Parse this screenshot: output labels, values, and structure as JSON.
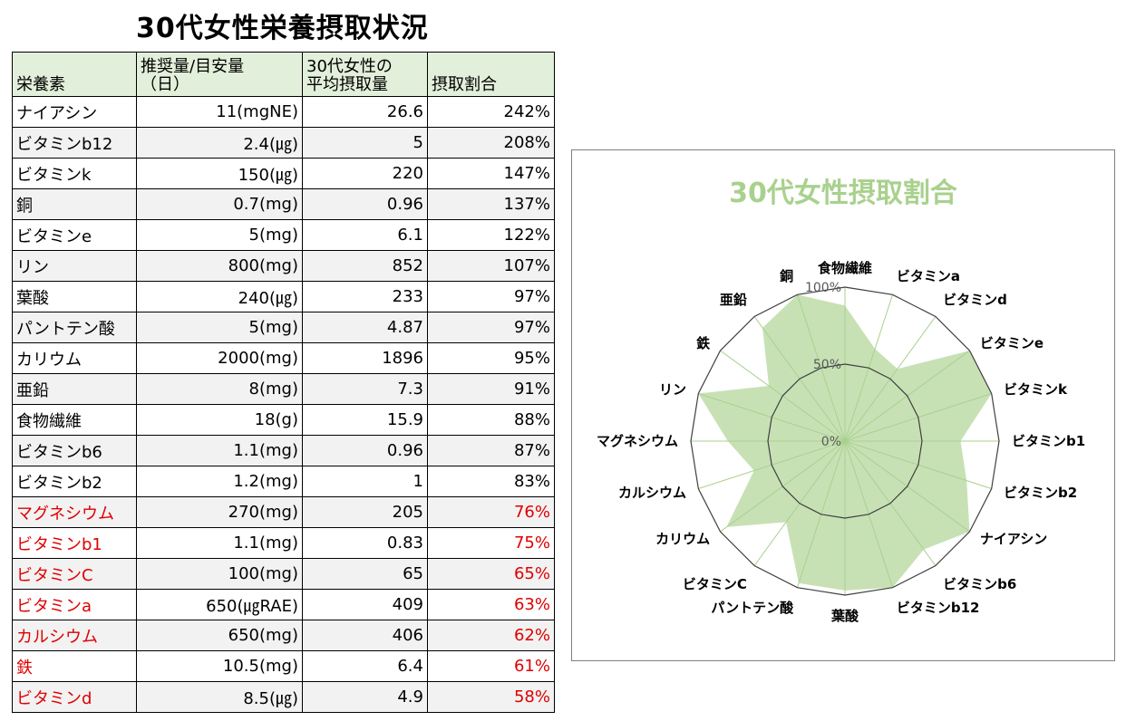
{
  "page_title": "30代女性栄養摂取状況",
  "table": {
    "headers": [
      "栄養素",
      "推奨量/目安量\n（日）",
      "30代女性の\n平均摂取量",
      "摂取割合"
    ],
    "rows": [
      {
        "name": "ナイアシン",
        "rec": "11(mgNE)",
        "avg": "26.6",
        "pct": "242%",
        "low": false
      },
      {
        "name": "ビタミンb12",
        "rec": "2.4(㎍)",
        "avg": "5",
        "pct": "208%",
        "low": false
      },
      {
        "name": "ビタミンk",
        "rec": "150(㎍)",
        "avg": "220",
        "pct": "147%",
        "low": false
      },
      {
        "name": "銅",
        "rec": "0.7(mg)",
        "avg": "0.96",
        "pct": "137%",
        "low": false
      },
      {
        "name": "ビタミンe",
        "rec": "5(mg)",
        "avg": "6.1",
        "pct": "122%",
        "low": false
      },
      {
        "name": "リン",
        "rec": "800(mg)",
        "avg": "852",
        "pct": "107%",
        "low": false
      },
      {
        "name": "葉酸",
        "rec": "240(㎍)",
        "avg": "233",
        "pct": "97%",
        "low": false
      },
      {
        "name": "パントテン酸",
        "rec": "5(mg)",
        "avg": "4.87",
        "pct": "97%",
        "low": false
      },
      {
        "name": "カリウム",
        "rec": "2000(mg)",
        "avg": "1896",
        "pct": "95%",
        "low": false
      },
      {
        "name": "亜鉛",
        "rec": "8(mg)",
        "avg": "7.3",
        "pct": "91%",
        "low": false
      },
      {
        "name": "食物繊維",
        "rec": "18(g)",
        "avg": "15.9",
        "pct": "88%",
        "low": false
      },
      {
        "name": "ビタミンb6",
        "rec": "1.1(mg)",
        "avg": "0.96",
        "pct": "87%",
        "low": false
      },
      {
        "name": "ビタミンb2",
        "rec": "1.2(mg)",
        "avg": "1",
        "pct": "83%",
        "low": false
      },
      {
        "name": "マグネシウム",
        "rec": "270(mg)",
        "avg": "205",
        "pct": "76%",
        "low": true
      },
      {
        "name": "ビタミンb1",
        "rec": "1.1(mg)",
        "avg": "0.83",
        "pct": "75%",
        "low": true
      },
      {
        "name": "ビタミンC",
        "rec": "100(mg)",
        "avg": "65",
        "pct": "65%",
        "low": true
      },
      {
        "name": "ビタミンa",
        "rec": "650(㎍RAE)",
        "avg": "409",
        "pct": "63%",
        "low": true
      },
      {
        "name": "カルシウム",
        "rec": "650(mg)",
        "avg": "406",
        "pct": "62%",
        "low": true
      },
      {
        "name": "鉄",
        "rec": "10.5(mg)",
        "avg": "6.4",
        "pct": "61%",
        "low": true
      },
      {
        "name": "ビタミンd",
        "rec": "8.5(㎍)",
        "avg": "4.9",
        "pct": "58%",
        "low": true
      }
    ]
  },
  "colors": {
    "header_bg": "#e2efda",
    "alt_row_bg": "#f2f2f2",
    "low_text": "#e00000",
    "radar_fill": "#a9d18e",
    "chart_title": "#a9d18e"
  },
  "chart_data": {
    "type": "radar",
    "title": "30代女性摂取割合",
    "categories": [
      "食物繊維",
      "ビタミンa",
      "ビタミンd",
      "ビタミンe",
      "ビタミンk",
      "ビタミンb1",
      "ビタミンb2",
      "ナイアシン",
      "ビタミンb6",
      "ビタミンb12",
      "葉酸",
      "パントテン酸",
      "ビタミンC",
      "カリウム",
      "カルシウム",
      "マグネシウム",
      "リン",
      "鉄",
      "亜鉛",
      "銅"
    ],
    "series": [
      {
        "values": [
          88,
          63,
          58,
          122,
          147,
          75,
          83,
          242,
          87,
          208,
          97,
          97,
          65,
          95,
          62,
          76,
          107,
          61,
          91,
          137
        ]
      }
    ],
    "r_ticks": [
      "0%",
      "50%",
      "100%"
    ],
    "r_max": 100,
    "clipped_to_max": true,
    "grid": true,
    "legend": "none"
  }
}
